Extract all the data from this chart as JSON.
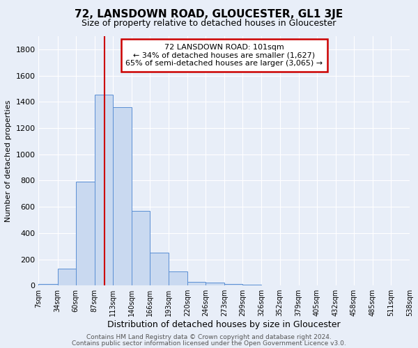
{
  "title": "72, LANSDOWN ROAD, GLOUCESTER, GL1 3JE",
  "subtitle": "Size of property relative to detached houses in Gloucester",
  "xlabel": "Distribution of detached houses by size in Gloucester",
  "ylabel": "Number of detached properties",
  "bin_edges": [
    7,
    34,
    60,
    87,
    113,
    140,
    166,
    193,
    220,
    246,
    273,
    299,
    326,
    352,
    379,
    405,
    432,
    458,
    485,
    511,
    538
  ],
  "bar_heights": [
    10,
    130,
    790,
    1455,
    1360,
    570,
    250,
    105,
    30,
    20,
    10,
    5,
    0,
    0,
    0,
    0,
    0,
    0,
    0,
    0
  ],
  "bar_color": "#c9d9f0",
  "bar_edge_color": "#5a8fd4",
  "vline_x": 101,
  "vline_color": "#cc0000",
  "annotation_text": "72 LANSDOWN ROAD: 101sqm\n← 34% of detached houses are smaller (1,627)\n65% of semi-detached houses are larger (3,065) →",
  "annotation_box_color": "#ffffff",
  "annotation_box_edge": "#cc0000",
  "footer_line1": "Contains HM Land Registry data © Crown copyright and database right 2024.",
  "footer_line2": "Contains public sector information licensed under the Open Government Licence v3.0.",
  "ylim": [
    0,
    1900
  ],
  "yticks": [
    0,
    200,
    400,
    600,
    800,
    1000,
    1200,
    1400,
    1600,
    1800
  ],
  "tick_labels": [
    "7sqm",
    "34sqm",
    "60sqm",
    "87sqm",
    "113sqm",
    "140sqm",
    "166sqm",
    "193sqm",
    "220sqm",
    "246sqm",
    "273sqm",
    "299sqm",
    "326sqm",
    "352sqm",
    "379sqm",
    "405sqm",
    "432sqm",
    "458sqm",
    "485sqm",
    "511sqm",
    "538sqm"
  ],
  "bg_color": "#e8eef8",
  "grid_color": "#ffffff"
}
